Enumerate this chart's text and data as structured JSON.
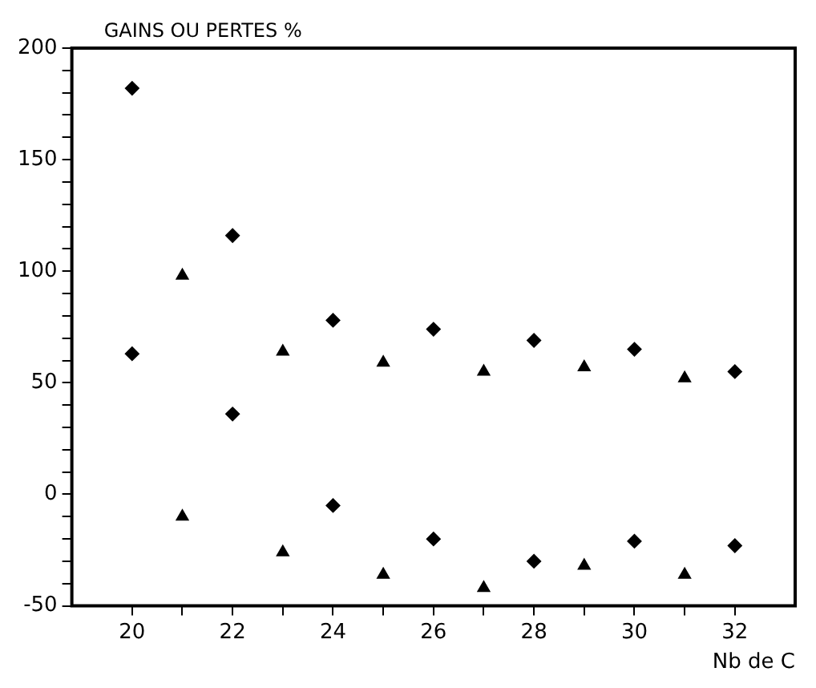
{
  "chart_data": {
    "type": "scatter",
    "ylabel": "GAINS OU PERTES %",
    "xlabel": "Nb de C",
    "grid": false,
    "legend": false,
    "xlim": [
      18.8,
      33.2
    ],
    "xticks": [
      20,
      {
        "value": 21,
        "label": null
      },
      22,
      {
        "value": 23,
        "label": null
      },
      24,
      {
        "value": 25,
        "label": null
      },
      26,
      {
        "value": 27,
        "label": null
      },
      28,
      {
        "value": 29,
        "label": null
      },
      30,
      {
        "value": 31,
        "label": null
      },
      32
    ],
    "ylim": [
      -50,
      200
    ],
    "yticks": [
      -50,
      {
        "value": -40,
        "label": null
      },
      {
        "value": -30,
        "label": null
      },
      {
        "value": -20,
        "label": null
      },
      {
        "value": -10,
        "label": null
      },
      0,
      {
        "value": 10,
        "label": null
      },
      {
        "value": 20,
        "label": null
      },
      {
        "value": 30,
        "label": null
      },
      {
        "value": 40,
        "label": null
      },
      50,
      {
        "value": 60,
        "label": null
      },
      {
        "value": 70,
        "label": null
      },
      {
        "value": 80,
        "label": null
      },
      {
        "value": 90,
        "label": null
      },
      100,
      {
        "value": 110,
        "label": null
      },
      {
        "value": 120,
        "label": null
      },
      {
        "value": 130,
        "label": null
      },
      {
        "value": 140,
        "label": null
      },
      150,
      {
        "value": 160,
        "label": null
      },
      {
        "value": 170,
        "label": null
      },
      {
        "value": 180,
        "label": null
      },
      {
        "value": 190,
        "label": null
      },
      200
    ],
    "series": [
      {
        "color": "#000000",
        "marker": "diamond",
        "x": [
          20,
          22,
          24,
          26,
          28,
          30,
          32
        ],
        "values": [
          182,
          116,
          78,
          74,
          69,
          65,
          55
        ]
      },
      {
        "color": "#000000",
        "marker": "triangle",
        "x": [
          21,
          23,
          25,
          27,
          29,
          31
        ],
        "values": [
          98,
          64,
          59,
          55,
          57,
          52
        ]
      },
      {
        "color": "#000000",
        "marker": "diamond",
        "x": [
          20,
          22,
          24,
          26,
          28,
          30,
          32
        ],
        "values": [
          63,
          36,
          -5,
          -20,
          -30,
          -21,
          -23
        ]
      },
      {
        "color": "#000000",
        "marker": "triangle",
        "x": [
          21,
          23,
          25,
          27,
          29,
          31
        ],
        "values": [
          -10,
          -26,
          -36,
          -42,
          -32,
          -36
        ]
      }
    ]
  }
}
